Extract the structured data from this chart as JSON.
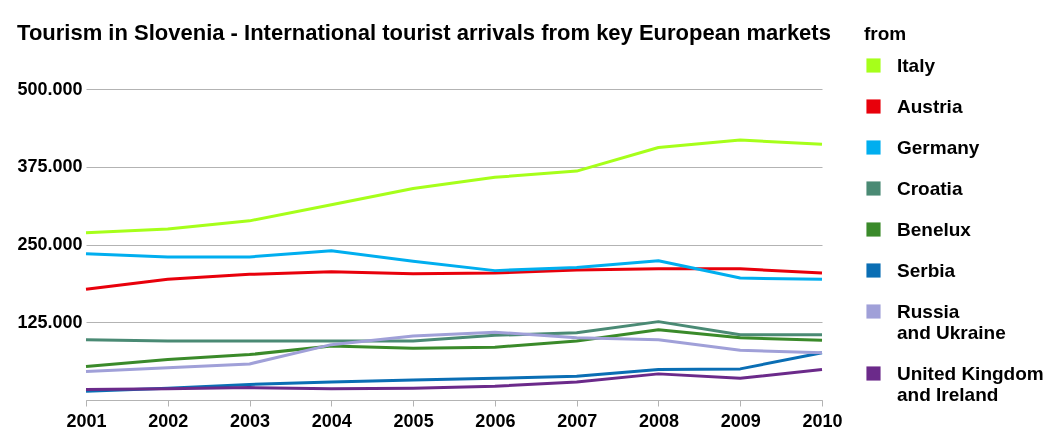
{
  "chart_data": {
    "type": "line",
    "title": "Tourism in Slovenia - International tourist arrivals from key European markets",
    "legend_title": "from",
    "categories": [
      "2001",
      "2002",
      "2003",
      "2004",
      "2005",
      "2006",
      "2007",
      "2008",
      "2009",
      "2010"
    ],
    "ylim": [
      0,
      500000
    ],
    "yticks": [
      {
        "value": 0,
        "label": null
      },
      {
        "value": 125000,
        "label": "125.000"
      },
      {
        "value": 250000,
        "label": "250.000"
      },
      {
        "value": 375000,
        "label": "375.000"
      },
      {
        "value": 500000,
        "label": "500.000"
      }
    ],
    "grid": "y",
    "legend": "right",
    "marker": "none",
    "line_style": "solid",
    "series": [
      {
        "name": "Italy",
        "color": "#a6ff1a",
        "values": [
          269000,
          275000,
          288000,
          314000,
          340000,
          358000,
          368000,
          406000,
          418000,
          411000
        ]
      },
      {
        "name": "Austria",
        "color": "#e8000b",
        "values": [
          178000,
          194000,
          202000,
          206000,
          203000,
          204000,
          209000,
          211000,
          211000,
          204000
        ]
      },
      {
        "name": "Germany",
        "color": "#00aeef",
        "values": [
          235000,
          230000,
          230000,
          240000,
          223000,
          208000,
          213000,
          224000,
          196000,
          194000
        ]
      },
      {
        "name": "Croatia",
        "color": "#4a8a74",
        "values": [
          97000,
          95000,
          95000,
          95000,
          95000,
          104000,
          108000,
          126000,
          105000,
          105000
        ]
      },
      {
        "name": "Benelux",
        "color": "#3a8a2a",
        "values": [
          54000,
          65000,
          73000,
          87000,
          83000,
          85000,
          95000,
          113000,
          100000,
          96000
        ]
      },
      {
        "name": "Serbia",
        "color": "#0a6eb4",
        "values": [
          14000,
          19000,
          25000,
          29000,
          32000,
          35000,
          38000,
          49000,
          50000,
          76000
        ]
      },
      {
        "name": "Russia and Ukraine",
        "color": "#a0a0d8",
        "values": [
          46000,
          52000,
          58000,
          89000,
          103000,
          109000,
          100000,
          97000,
          80000,
          76000
        ]
      },
      {
        "name": "United Kingdom and Ireland",
        "color": "#6b2a8a",
        "values": [
          17000,
          18000,
          20000,
          18000,
          19000,
          22000,
          29000,
          42000,
          35000,
          49000
        ]
      }
    ]
  }
}
